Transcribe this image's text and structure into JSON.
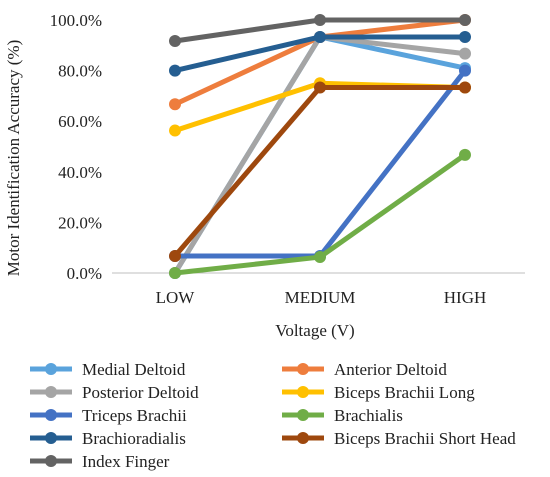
{
  "chart_data": {
    "type": "line",
    "title": "",
    "xlabel": "Voltage (V)",
    "ylabel": "Motor Identification Accuracy (%)",
    "categories": [
      "LOW",
      "MEDIUM",
      "HIGH"
    ],
    "ylim": [
      0,
      100
    ],
    "yticks": [
      "0.0%",
      "20.0%",
      "40.0%",
      "60.0%",
      "80.0%",
      "100.0%"
    ],
    "grid": false,
    "legend_placement": "bottom",
    "series": [
      {
        "name": "Medial Deltoid",
        "color": "#5aa3dc",
        "values": [
          0,
          93.3,
          81
        ]
      },
      {
        "name": "Anterior Deltoid",
        "color": "#ee7d3d",
        "values": [
          66.7,
          93.3,
          100
        ]
      },
      {
        "name": "Posterior Deltoid",
        "color": "#a5a5a5",
        "values": [
          0,
          93.3,
          86.7
        ]
      },
      {
        "name": "Biceps Brachii Long",
        "color": "#ffc000",
        "values": [
          56.3,
          75,
          73.3
        ]
      },
      {
        "name": "Triceps Brachii",
        "color": "#4472c4",
        "values": [
          6.7,
          6.7,
          80
        ]
      },
      {
        "name": "Brachialis",
        "color": "#70ad47",
        "values": [
          0,
          6.3,
          46.7
        ]
      },
      {
        "name": "Brachioradialis",
        "color": "#255e91",
        "values": [
          80,
          93.3,
          93.3
        ]
      },
      {
        "name": "Biceps Brachii Short Head",
        "color": "#9e480e",
        "values": [
          6.7,
          73.3,
          73.3
        ]
      },
      {
        "name": "Index Finger",
        "color": "#636363",
        "values": [
          91.7,
          100,
          100
        ]
      }
    ]
  }
}
